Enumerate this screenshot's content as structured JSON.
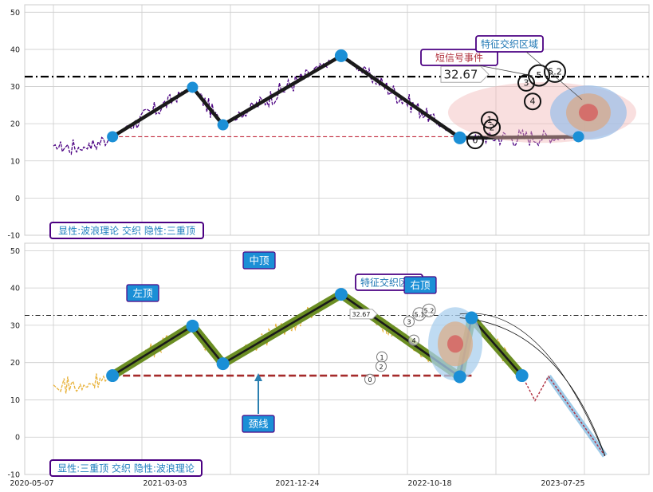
{
  "chart_data": [
    {
      "type": "line",
      "title": "",
      "xlabel": "",
      "ylabel": "",
      "ylim": [
        -10,
        52
      ],
      "yticks": [
        -10,
        0,
        10,
        20,
        30,
        40,
        50
      ],
      "grid": true,
      "reference_line": {
        "y": 32.67,
        "style": "dash-dot",
        "color": "#000000"
      },
      "neckline": {
        "y": 16.5,
        "x_from": "2020-09-20",
        "x_to": "2023-04-20",
        "color": "#c0283c"
      },
      "price_series": {
        "color": "#4b0082",
        "style": "dashed"
      },
      "zigzag": {
        "x": [
          "2020-09-20",
          "2021-03-23",
          "2021-06-01",
          "2022-02-28",
          "2022-11-28",
          "2023-08-28"
        ],
        "y": [
          16.5,
          29.8,
          19.7,
          38.3,
          16.2,
          16.5
        ]
      },
      "callout_value": "32.67",
      "annotations": [
        {
          "text": "短信号事件",
          "color": "#b0303c"
        },
        {
          "text": "特征交织区域",
          "color": "#1f77b4"
        }
      ],
      "circle_markers": [
        "0",
        "1",
        "2",
        "3",
        "4",
        "5",
        "5.2"
      ],
      "label": "显性:波浪理论 交织 隐性:三重顶",
      "palette": {
        "zigzag": "#1a1a1a",
        "node": "#1b8fd6",
        "label_border": "#4b0082",
        "label_text": "#1f7fbf"
      }
    },
    {
      "type": "line",
      "title": "",
      "xlabel": "",
      "ylabel": "",
      "ylim": [
        -10,
        52
      ],
      "yticks": [
        -10,
        0,
        10,
        20,
        30,
        40,
        50
      ],
      "x_tick_labels": [
        "2020-05-07",
        "2021-03-03",
        "2021-12-24",
        "2022-10-18",
        "2023-07-25"
      ],
      "grid": true,
      "reference_line": {
        "y": 32.67,
        "style": "dash-dot",
        "color": "#000000"
      },
      "neckline": {
        "y": 16.5,
        "x_from": "2020-09-20",
        "x_to": "2022-12-25",
        "color": "#a52a2a"
      },
      "price_series": {
        "color": "#e8b23a",
        "style": "dashed"
      },
      "zigzag": {
        "x": [
          "2020-09-20",
          "2021-03-23",
          "2021-06-01",
          "2022-02-28",
          "2022-11-28",
          "2022-12-25",
          "2023-04-20"
        ],
        "y": [
          16.5,
          29.8,
          19.7,
          38.3,
          16.2,
          32.0,
          16.5
        ]
      },
      "projection": {
        "x": [
          "2023-04-20",
          "2023-05-20",
          "2023-06-20",
          "2023-10-28"
        ],
        "y": [
          16.5,
          9.8,
          16.3,
          -5.0
        ]
      },
      "callout_value": "32.67",
      "peak_labels": [
        "左顶",
        "中顶",
        "右顶"
      ],
      "neck_label": "颈线",
      "annotations": [
        {
          "text": "特征交织区域",
          "color": "#1f77b4"
        }
      ],
      "circle_markers": [
        "0",
        "1",
        "2",
        "3",
        "4",
        "5.1",
        "5.2"
      ],
      "label": "显性:三重顶 交织 隐性:波浪理论",
      "palette": {
        "zigzag": "#1a1a1a",
        "band": "#6b8e23",
        "node": "#1b8fd6",
        "callout_fill": "#1b8fd6",
        "label_border": "#4b0082",
        "label_text": "#1f7fbf"
      }
    }
  ]
}
